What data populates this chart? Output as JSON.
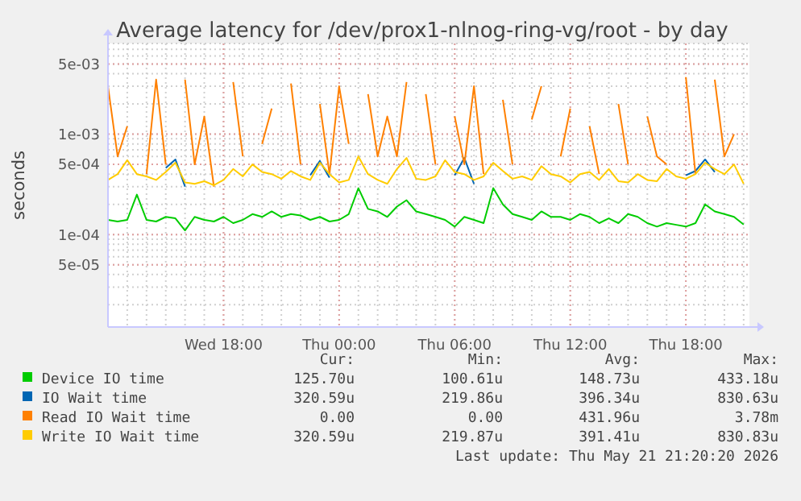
{
  "chart_data": {
    "type": "line",
    "title": "Average latency for /dev/prox1-nlnog-ring-vg/root - by day",
    "ylabel": "seconds",
    "log": true,
    "grid": true,
    "legend": "bottom",
    "marker": "none",
    "line_style": "solid",
    "xlim": [
      "2026-05-20T12:00",
      "2026-05-21T21:18"
    ],
    "xticks": [
      {
        "value": "2026-05-20T18:00",
        "label": "Wed 18:00"
      },
      {
        "value": "2026-05-21T00:00",
        "label": "Thu 00:00"
      },
      {
        "value": "2026-05-21T06:00",
        "label": "Thu 06:00"
      },
      {
        "value": "2026-05-21T12:00",
        "label": "Thu 12:00"
      },
      {
        "value": "2026-05-21T18:00",
        "label": "Thu 18:00"
      }
    ],
    "ylim": [
      1.2e-05,
      0.008
    ],
    "yticks": [
      {
        "value": 5e-05,
        "label": "5e-05"
      },
      {
        "value": 0.0001,
        "label": "1e-04"
      },
      {
        "value": 0.0005,
        "label": "5e-04"
      },
      {
        "value": 0.001,
        "label": "1e-03"
      },
      {
        "value": 0.005,
        "label": "5e-03"
      }
    ],
    "x": [
      "2026-05-20T12:00",
      "2026-05-20T12:30",
      "2026-05-20T13:00",
      "2026-05-20T13:30",
      "2026-05-20T14:00",
      "2026-05-20T14:30",
      "2026-05-20T15:00",
      "2026-05-20T15:30",
      "2026-05-20T16:00",
      "2026-05-20T16:30",
      "2026-05-20T17:00",
      "2026-05-20T17:30",
      "2026-05-20T18:00",
      "2026-05-20T18:30",
      "2026-05-20T19:00",
      "2026-05-20T19:30",
      "2026-05-20T20:00",
      "2026-05-20T20:30",
      "2026-05-20T21:00",
      "2026-05-20T21:30",
      "2026-05-20T22:00",
      "2026-05-20T22:30",
      "2026-05-20T23:00",
      "2026-05-20T23:30",
      "2026-05-21T00:00",
      "2026-05-21T00:30",
      "2026-05-21T01:00",
      "2026-05-21T01:30",
      "2026-05-21T02:00",
      "2026-05-21T02:30",
      "2026-05-21T03:00",
      "2026-05-21T03:30",
      "2026-05-21T04:00",
      "2026-05-21T04:30",
      "2026-05-21T05:00",
      "2026-05-21T05:30",
      "2026-05-21T06:00",
      "2026-05-21T06:30",
      "2026-05-21T07:00",
      "2026-05-21T07:30",
      "2026-05-21T08:00",
      "2026-05-21T08:30",
      "2026-05-21T09:00",
      "2026-05-21T09:30",
      "2026-05-21T10:00",
      "2026-05-21T10:30",
      "2026-05-21T11:00",
      "2026-05-21T11:30",
      "2026-05-21T12:00",
      "2026-05-21T12:30",
      "2026-05-21T13:00",
      "2026-05-21T13:30",
      "2026-05-21T14:00",
      "2026-05-21T14:30",
      "2026-05-21T15:00",
      "2026-05-21T15:30",
      "2026-05-21T16:00",
      "2026-05-21T16:30",
      "2026-05-21T17:00",
      "2026-05-21T17:30",
      "2026-05-21T18:00",
      "2026-05-21T18:30",
      "2026-05-21T19:00",
      "2026-05-21T19:30",
      "2026-05-21T20:00",
      "2026-05-21T20:30",
      "2026-05-21T21:00"
    ],
    "series": [
      {
        "name": "Device IO time",
        "color": "#00cc00",
        "values": [
          0.00014,
          0.000135,
          0.00014,
          0.00025,
          0.00014,
          0.000135,
          0.00015,
          0.000145,
          0.00011,
          0.00015,
          0.00014,
          0.000135,
          0.00015,
          0.00013,
          0.00014,
          0.00016,
          0.00015,
          0.00017,
          0.00015,
          0.00016,
          0.000155,
          0.00014,
          0.00015,
          0.000135,
          0.00014,
          0.00016,
          0.00029,
          0.00018,
          0.00017,
          0.00015,
          0.00019,
          0.00022,
          0.00017,
          0.00016,
          0.00015,
          0.00014,
          0.00012,
          0.00015,
          0.00014,
          0.00013,
          0.00029,
          0.0002,
          0.00016,
          0.00015,
          0.00014,
          0.00017,
          0.00015,
          0.00015,
          0.00014,
          0.00016,
          0.00015,
          0.00013,
          0.000145,
          0.00013,
          0.00016,
          0.00015,
          0.00013,
          0.00012,
          0.00013,
          0.000125,
          0.00012,
          0.00013,
          0.0002,
          0.00017,
          0.00016,
          0.00015,
          0.000126
        ]
      },
      {
        "name": "IO Wait time",
        "color": "#0066b3",
        "values": [
          null,
          null,
          null,
          null,
          null,
          null,
          0.00046,
          0.00056,
          0.0003,
          null,
          null,
          null,
          null,
          null,
          null,
          null,
          null,
          null,
          null,
          null,
          null,
          0.00039,
          0.00054,
          0.00037,
          null,
          null,
          null,
          null,
          null,
          null,
          null,
          null,
          null,
          null,
          null,
          null,
          0.00039,
          0.00058,
          0.00032,
          null,
          null,
          null,
          null,
          null,
          null,
          null,
          null,
          null,
          null,
          null,
          null,
          null,
          null,
          null,
          null,
          null,
          null,
          null,
          null,
          null,
          0.00039,
          0.00043,
          0.00056,
          0.00042,
          null,
          null,
          null
        ]
      },
      {
        "name": "Read IO Wait time",
        "color": "#ff8000",
        "values": [
          0.003,
          0.0006,
          0.0012,
          null,
          0.0004,
          0.0035,
          0.0005,
          null,
          0.0035,
          0.0005,
          0.0015,
          0.0003,
          null,
          0.0033,
          0.0006,
          null,
          0.0008,
          0.0018,
          null,
          0.0032,
          0.0005,
          null,
          0.002,
          0.0004,
          0.003,
          0.0008,
          null,
          0.0025,
          0.0006,
          0.0015,
          0.0006,
          0.0033,
          null,
          0.0025,
          0.0005,
          null,
          0.0015,
          0.0005,
          0.003,
          0.0004,
          null,
          0.0022,
          0.0005,
          null,
          0.0014,
          0.003,
          null,
          0.0006,
          0.0018,
          null,
          0.0012,
          0.0004,
          null,
          0.002,
          0.0005,
          null,
          0.0015,
          0.0006,
          0.0005,
          null,
          0.0037,
          0.0004,
          null,
          0.0035,
          0.0006,
          0.001,
          null
        ]
      },
      {
        "name": "Write IO Wait time",
        "color": "#ffcc00",
        "values": [
          0.00035,
          0.0004,
          0.00055,
          0.0004,
          0.00038,
          0.00035,
          0.00042,
          0.00052,
          0.00033,
          0.00032,
          0.00034,
          0.00031,
          0.00035,
          0.00045,
          0.00038,
          0.0005,
          0.00042,
          0.0004,
          0.00036,
          0.00043,
          0.00038,
          0.00035,
          0.00052,
          0.0004,
          0.00033,
          0.00035,
          0.0006,
          0.0004,
          0.00035,
          0.00032,
          0.00045,
          0.00058,
          0.00036,
          0.00035,
          0.00038,
          0.00055,
          0.00042,
          0.0004,
          0.00035,
          0.00038,
          0.00052,
          0.00043,
          0.00036,
          0.00038,
          0.00035,
          0.00048,
          0.0004,
          0.00038,
          0.00033,
          0.0004,
          0.00042,
          0.00035,
          0.00045,
          0.00034,
          0.00033,
          0.0004,
          0.00035,
          0.00034,
          0.00045,
          0.00038,
          0.00036,
          0.0004,
          0.00052,
          0.00045,
          0.0004,
          0.0005,
          0.000321
        ]
      }
    ],
    "annotations": [
      "Cur:",
      "Min:",
      "Avg:",
      "Max:",
      "125.70u",
      "100.61u",
      "148.73u",
      "433.18u",
      "320.59u",
      "219.86u",
      "396.34u",
      "830.63u",
      "0.00",
      "0.00",
      "431.96u",
      "3.78m",
      "320.59u",
      "219.87u",
      "391.41u",
      "830.83u",
      "Last update: Thu May 21 21:20:20 2026"
    ]
  }
}
